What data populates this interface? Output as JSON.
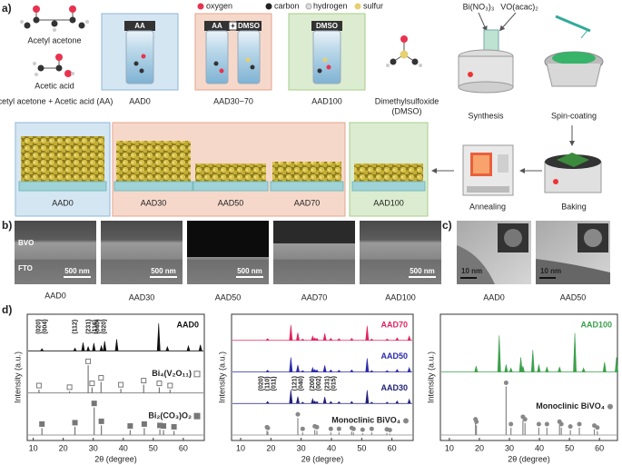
{
  "panel_a": {
    "label": "a)",
    "atom_legend": [
      "oxygen",
      "carbon",
      "hydrogen",
      "sulfur"
    ],
    "molecules": [
      "Acetyl acetone",
      "Acetic acid"
    ],
    "solvent_aa": "Acetyl acetone + Acetic acid (AA)",
    "solvent_dmso": [
      "Dimethylsulfoxide",
      "(DMSO)"
    ],
    "vials": [
      {
        "tags": [
          "AA"
        ],
        "caption": "AAD0"
      },
      {
        "tags": [
          "AA",
          "+",
          "DMSO"
        ],
        "caption": "AAD30~70"
      },
      {
        "tags": [
          "DMSO"
        ],
        "caption": "AAD100"
      }
    ],
    "reagents": [
      "Bi(NO₃)₃",
      "VO(acac)₂"
    ],
    "steps": [
      "Synthesis",
      "Spin-coating",
      "Baking",
      "Annealing"
    ],
    "films": [
      "AAD0",
      "AAD30",
      "AAD50",
      "AAD70",
      "AAD100"
    ]
  },
  "panel_b": {
    "label": "b)",
    "layers": [
      "BVO",
      "FTO"
    ],
    "scale_bar": "500 nm",
    "samples": [
      "AAD0",
      "AAD30",
      "AAD50",
      "AAD70",
      "AAD100"
    ]
  },
  "panel_c": {
    "label": "c)",
    "scale_bar": "10 nm",
    "samples": [
      "AAD0",
      "AAD50"
    ]
  },
  "panel_d": {
    "label": "d)"
  },
  "chart_data": [
    {
      "type": "xrd",
      "xlabel": "2θ (degree)",
      "ylabel": "Intensity (a.u.)",
      "xlim": [
        8,
        67
      ],
      "xticks": [
        10,
        20,
        30,
        40,
        50,
        60
      ],
      "ylim": [
        0,
        100
      ],
      "series": [
        {
          "name": "AAD0",
          "color": "#111111",
          "style": "pattern",
          "x": [
            12.9,
            23.9,
            26.6,
            28.3,
            30.2,
            32.7,
            33.8,
            37.8,
            51.8,
            54.7,
            61.7,
            65.7
          ],
          "values": [
            8,
            10,
            30,
            15,
            28,
            18,
            35,
            42,
            100,
            15,
            18,
            22
          ],
          "annotations": [
            {
              "x": 12.9,
              "labels": [
                "(020)",
                "(004)"
              ]
            },
            {
              "x": 23.9,
              "labels": [
                "(112)"
              ]
            },
            {
              "x": 29.5,
              "labels": [
                "(231)",
                "(116)"
              ]
            },
            {
              "x": 32.5,
              "labels": [
                "(040)",
                "(020)"
              ]
            }
          ]
        },
        {
          "name": "Bi₄(V₂O₁₁)",
          "color": "#777777",
          "style": "stick",
          "marker": "square-open",
          "x": [
            11.9,
            22.1,
            28.3,
            29.6,
            32.6,
            39.2,
            46.8,
            52.0,
            55.6
          ],
          "values": [
            12,
            6,
            100,
            20,
            40,
            15,
            30,
            20,
            12
          ]
        },
        {
          "name": "Bi₂(CO₃)O₂",
          "color": "#777777",
          "style": "stick",
          "marker": "square",
          "x": [
            12.9,
            23.9,
            30.3,
            32.7,
            42.3,
            47.0,
            52.2,
            53.4,
            56.9
          ],
          "values": [
            25,
            30,
            100,
            35,
            18,
            25,
            20,
            18,
            15
          ]
        }
      ]
    },
    {
      "type": "xrd",
      "xlabel": "2θ (degree)",
      "ylabel": "Intensity (a.u.)",
      "xlim": [
        7,
        67
      ],
      "xticks": [
        10,
        20,
        30,
        40,
        50,
        60
      ],
      "ylim": [
        0,
        100
      ],
      "series": [
        {
          "name": "AAD70",
          "color": "#e0245e",
          "style": "pattern",
          "x": [
            18.9,
            26.6,
            28.9,
            30.5,
            33.8,
            34.5,
            35.2,
            37.8,
            39.8,
            42.5,
            46.7,
            51.8,
            53.3,
            58.4,
            61.7,
            65.7
          ],
          "values": [
            10,
            90,
            45,
            8,
            25,
            15,
            12,
            40,
            12,
            10,
            12,
            85,
            8,
            8,
            15,
            25
          ]
        },
        {
          "name": "AAD50",
          "color": "#2a2aa8",
          "style": "pattern",
          "x": [
            18.9,
            26.6,
            28.9,
            30.5,
            33.8,
            34.5,
            35.2,
            37.8,
            39.8,
            42.5,
            46.7,
            51.8,
            53.3,
            58.4,
            61.7,
            65.7
          ],
          "values": [
            10,
            85,
            40,
            8,
            25,
            14,
            12,
            38,
            12,
            10,
            12,
            80,
            8,
            8,
            15,
            25
          ]
        },
        {
          "name": "AAD30",
          "color": "#1f1f7a",
          "style": "pattern",
          "x": [
            18.9,
            26.6,
            28.9,
            30.5,
            33.8,
            34.5,
            35.2,
            37.8,
            39.8,
            42.5,
            46.7,
            51.8,
            53.3,
            58.4,
            61.7,
            65.7
          ],
          "values": [
            12,
            80,
            40,
            8,
            28,
            14,
            12,
            38,
            12,
            10,
            12,
            78,
            8,
            8,
            15,
            25
          ],
          "annotations": [
            {
              "x": 18.9,
              "labels": [
                "(020)",
                "(110)",
                "(011)"
              ]
            },
            {
              "x": 28.9,
              "labels": [
                "(121)",
                "(040)"
              ]
            },
            {
              "x": 34.8,
              "labels": [
                "(200)",
                "(002)"
              ]
            },
            {
              "x": 39.8,
              "labels": [
                "(231)",
                "(015)"
              ]
            }
          ]
        },
        {
          "name": "Monoclinic BiVO₄",
          "color": "#888888",
          "style": "stick",
          "marker": "circle",
          "x": [
            18.7,
            19.0,
            28.9,
            30.5,
            34.5,
            35.2,
            39.8,
            42.5,
            46.7,
            47.3,
            50.3,
            53.3,
            58.3,
            59.3
          ],
          "values": [
            25,
            20,
            100,
            15,
            30,
            25,
            15,
            15,
            20,
            15,
            10,
            15,
            12,
            8
          ]
        }
      ]
    },
    {
      "type": "xrd",
      "xlabel": "2θ (degree)",
      "ylabel": "Intensity (a.u.)",
      "xlim": [
        7,
        66
      ],
      "xticks": [
        10,
        20,
        30,
        40,
        50,
        60
      ],
      "ylim": [
        0,
        100
      ],
      "series": [
        {
          "name": "AAD100",
          "color": "#3aa04a",
          "style": "pattern",
          "x": [
            18.9,
            26.6,
            28.9,
            30.5,
            33.8,
            34.5,
            37.8,
            39.8,
            42.5,
            46.7,
            51.8,
            54.7,
            61.7,
            65.7
          ],
          "values": [
            12,
            75,
            15,
            8,
            30,
            12,
            45,
            15,
            10,
            10,
            80,
            8,
            20,
            30
          ]
        },
        {
          "name": "Monoclinic BiVO₄",
          "color": "#888888",
          "style": "stick",
          "marker": "circle",
          "x": [
            18.7,
            19.0,
            28.9,
            30.5,
            34.5,
            35.2,
            39.8,
            42.5,
            46.7,
            47.3,
            50.3,
            53.3,
            58.3,
            59.3
          ],
          "values": [
            25,
            20,
            100,
            15,
            30,
            25,
            15,
            15,
            20,
            15,
            10,
            15,
            12,
            8
          ]
        }
      ]
    }
  ]
}
